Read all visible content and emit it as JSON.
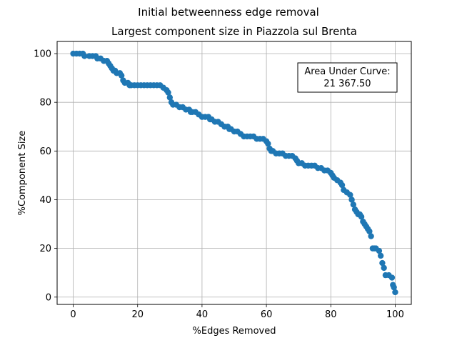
{
  "chart_data": {
    "type": "scatter",
    "suptitle": "Initial betweenness edge removal",
    "title": "Largest component size in Piazzola sul Brenta",
    "xlabel": "%Edges Removed",
    "ylabel": "%Component Size",
    "xlim": [
      -5,
      105
    ],
    "ylim": [
      -3,
      105
    ],
    "xticks": [
      0,
      20,
      40,
      60,
      80,
      100
    ],
    "yticks": [
      0,
      20,
      40,
      60,
      80,
      100
    ],
    "grid": true,
    "marker_color": "#1f77b4",
    "annotation": {
      "line1": "Area Under Curve:",
      "line2": "21 367.50",
      "placement": "top-right"
    },
    "series": [
      {
        "points": [
          [
            0,
            100
          ],
          [
            1,
            100
          ],
          [
            2,
            100
          ],
          [
            3,
            100
          ],
          [
            3.5,
            99
          ],
          [
            5,
            99
          ],
          [
            6,
            99
          ],
          [
            7,
            99
          ],
          [
            7.5,
            98
          ],
          [
            8.5,
            98
          ],
          [
            9.5,
            97
          ],
          [
            10.5,
            97
          ],
          [
            11,
            96
          ],
          [
            11.5,
            95
          ],
          [
            12,
            94
          ],
          [
            12.5,
            93
          ],
          [
            13,
            93
          ],
          [
            13.5,
            92
          ],
          [
            14.5,
            92
          ],
          [
            15,
            91
          ],
          [
            15.5,
            89
          ],
          [
            16,
            88
          ],
          [
            17,
            88
          ],
          [
            17.5,
            87
          ],
          [
            18,
            87
          ],
          [
            19,
            87
          ],
          [
            20,
            87
          ],
          [
            21,
            87
          ],
          [
            22,
            87
          ],
          [
            23,
            87
          ],
          [
            24,
            87
          ],
          [
            25,
            87
          ],
          [
            26,
            87
          ],
          [
            27,
            87
          ],
          [
            28,
            86
          ],
          [
            29,
            85
          ],
          [
            29.5,
            84
          ],
          [
            30,
            82
          ],
          [
            30.5,
            80
          ],
          [
            31,
            79
          ],
          [
            32,
            79
          ],
          [
            33,
            78
          ],
          [
            34,
            78
          ],
          [
            35,
            77
          ],
          [
            36,
            77
          ],
          [
            36.5,
            76
          ],
          [
            37,
            76
          ],
          [
            38,
            76
          ],
          [
            39,
            75
          ],
          [
            40,
            74
          ],
          [
            41,
            74
          ],
          [
            42,
            74
          ],
          [
            42.5,
            73
          ],
          [
            43,
            73
          ],
          [
            44,
            72
          ],
          [
            45,
            72
          ],
          [
            46,
            71
          ],
          [
            47,
            70
          ],
          [
            48,
            70
          ],
          [
            48.5,
            69
          ],
          [
            49,
            69
          ],
          [
            50,
            68
          ],
          [
            51,
            68
          ],
          [
            52,
            67
          ],
          [
            53,
            66
          ],
          [
            54,
            66
          ],
          [
            55,
            66
          ],
          [
            56,
            66
          ],
          [
            57,
            65
          ],
          [
            58,
            65
          ],
          [
            59,
            65
          ],
          [
            60,
            64
          ],
          [
            60.5,
            63
          ],
          [
            61,
            61
          ],
          [
            61.5,
            60
          ],
          [
            62,
            60
          ],
          [
            63,
            59
          ],
          [
            64,
            59
          ],
          [
            65,
            59
          ],
          [
            66,
            58
          ],
          [
            67,
            58
          ],
          [
            68,
            58
          ],
          [
            69,
            57
          ],
          [
            69.5,
            56
          ],
          [
            70,
            55
          ],
          [
            71,
            55
          ],
          [
            72,
            54
          ],
          [
            73,
            54
          ],
          [
            74,
            54
          ],
          [
            75,
            54
          ],
          [
            76,
            53
          ],
          [
            77,
            53
          ],
          [
            78,
            52
          ],
          [
            79,
            52
          ],
          [
            80,
            51
          ],
          [
            80.5,
            50
          ],
          [
            81,
            49
          ],
          [
            82,
            48
          ],
          [
            83,
            47
          ],
          [
            83.5,
            46
          ],
          [
            84,
            44
          ],
          [
            85,
            43
          ],
          [
            86,
            42
          ],
          [
            86.5,
            40
          ],
          [
            87,
            38
          ],
          [
            87.5,
            36
          ],
          [
            88,
            35
          ],
          [
            88.5,
            34
          ],
          [
            89,
            34
          ],
          [
            89.5,
            33
          ],
          [
            90,
            31
          ],
          [
            90.5,
            30
          ],
          [
            91,
            29
          ],
          [
            91.5,
            28
          ],
          [
            92,
            27
          ],
          [
            92.5,
            25
          ],
          [
            93,
            20
          ],
          [
            93.5,
            20
          ],
          [
            94,
            20
          ],
          [
            95,
            19
          ],
          [
            95.5,
            17
          ],
          [
            96,
            14
          ],
          [
            96.5,
            12
          ],
          [
            97,
            9
          ],
          [
            98,
            9
          ],
          [
            99,
            8
          ],
          [
            99.3,
            5
          ],
          [
            99.6,
            4
          ],
          [
            100,
            2
          ]
        ]
      }
    ]
  }
}
